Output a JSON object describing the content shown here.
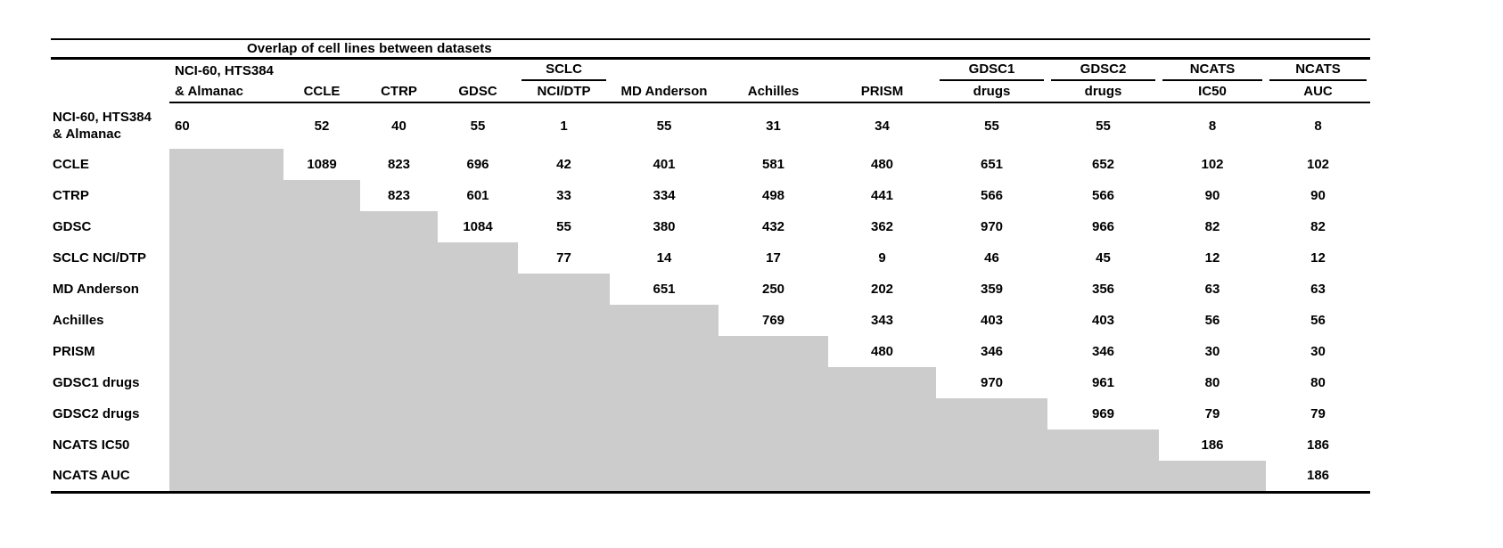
{
  "title": "Overlap of cell lines between datasets",
  "colors": {
    "shaded_cell": "#cccccc",
    "rule": "#000000",
    "text": "#000000"
  },
  "table": {
    "columns": [
      {
        "lines": [
          "NCI-60, HTS384",
          "& Almanac"
        ]
      },
      {
        "lines": [
          "",
          "CCLE"
        ]
      },
      {
        "lines": [
          "",
          "CTRP"
        ]
      },
      {
        "lines": [
          "",
          "GDSC"
        ]
      },
      {
        "lines": [
          "SCLC",
          "NCI/DTP"
        ]
      },
      {
        "lines": [
          "",
          "MD Anderson"
        ]
      },
      {
        "lines": [
          "",
          "Achilles"
        ]
      },
      {
        "lines": [
          "",
          "PRISM"
        ]
      },
      {
        "lines": [
          "GDSC1",
          "drugs"
        ]
      },
      {
        "lines": [
          "GDSC2",
          "drugs"
        ]
      },
      {
        "lines": [
          "NCATS",
          "IC50"
        ]
      },
      {
        "lines": [
          "NCATS",
          "AUC"
        ]
      }
    ],
    "rows": [
      {
        "label_lines": [
          "NCI-60, HTS384",
          "& Almanac"
        ],
        "values": [
          60,
          52,
          40,
          55,
          1,
          55,
          31,
          34,
          55,
          55,
          8,
          8
        ]
      },
      {
        "label_lines": [
          "CCLE"
        ],
        "values": [
          null,
          1089,
          823,
          696,
          42,
          401,
          581,
          480,
          651,
          652,
          102,
          102
        ]
      },
      {
        "label_lines": [
          "CTRP"
        ],
        "values": [
          null,
          null,
          823,
          601,
          33,
          334,
          498,
          441,
          566,
          566,
          90,
          90
        ]
      },
      {
        "label_lines": [
          "GDSC"
        ],
        "values": [
          null,
          null,
          null,
          1084,
          55,
          380,
          432,
          362,
          970,
          966,
          82,
          82
        ]
      },
      {
        "label_lines": [
          "SCLC NCI/DTP"
        ],
        "values": [
          null,
          null,
          null,
          null,
          77,
          14,
          17,
          9,
          46,
          45,
          12,
          12
        ]
      },
      {
        "label_lines": [
          "MD Anderson"
        ],
        "values": [
          null,
          null,
          null,
          null,
          null,
          651,
          250,
          202,
          359,
          356,
          63,
          63
        ]
      },
      {
        "label_lines": [
          "Achilles"
        ],
        "values": [
          null,
          null,
          null,
          null,
          null,
          null,
          769,
          343,
          403,
          403,
          56,
          56
        ]
      },
      {
        "label_lines": [
          "PRISM"
        ],
        "values": [
          null,
          null,
          null,
          null,
          null,
          null,
          null,
          480,
          346,
          346,
          30,
          30
        ]
      },
      {
        "label_lines": [
          "GDSC1 drugs"
        ],
        "values": [
          null,
          null,
          null,
          null,
          null,
          null,
          null,
          null,
          970,
          961,
          80,
          80
        ]
      },
      {
        "label_lines": [
          "GDSC2 drugs"
        ],
        "values": [
          null,
          null,
          null,
          null,
          null,
          null,
          null,
          null,
          null,
          969,
          79,
          79
        ]
      },
      {
        "label_lines": [
          "NCATS IC50"
        ],
        "values": [
          null,
          null,
          null,
          null,
          null,
          null,
          null,
          null,
          null,
          null,
          186,
          186
        ]
      },
      {
        "label_lines": [
          "NCATS AUC"
        ],
        "values": [
          null,
          null,
          null,
          null,
          null,
          null,
          null,
          null,
          null,
          null,
          null,
          186
        ]
      }
    ]
  }
}
